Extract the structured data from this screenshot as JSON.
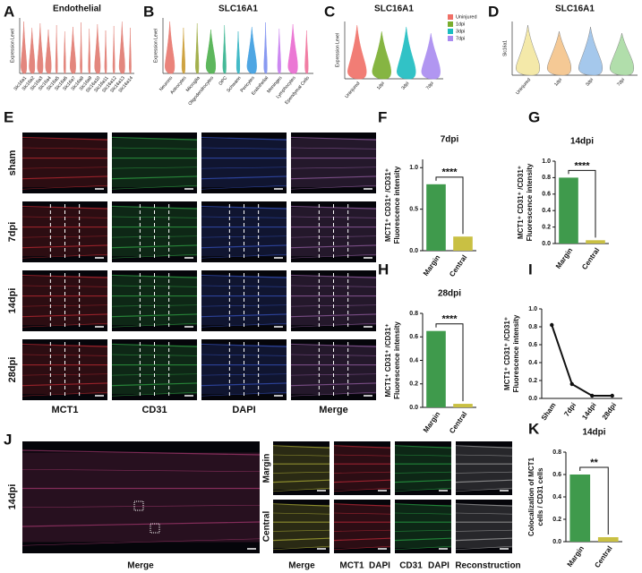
{
  "panel_letters": [
    "A",
    "B",
    "C",
    "D",
    "E",
    "F",
    "G",
    "H",
    "I",
    "J",
    "K"
  ],
  "violins": [
    {
      "title": "Endothelial",
      "ylabel": "Expression Level",
      "categories": [
        "Slc16a1",
        "Slc16a2",
        "Slc16a3",
        "Slc16a4",
        "Slc16a5",
        "Slc16a6",
        "Slc16a7",
        "Slc16a8",
        "Slc16a9",
        "Slc16a10",
        "Slc16a11",
        "Slc16a12",
        "Slc16a13",
        "Slc16a14"
      ],
      "colors": [
        "#e07a70"
      ]
    },
    {
      "title": "SLC16A1",
      "ylabel": "Expression Level",
      "categories": [
        "Neurons",
        "Astrocytes",
        "Microglia",
        "Oligodendrocytes",
        "OPC",
        "Schwann",
        "Pericytes",
        "Endothelial",
        "Meninges",
        "Lymphocytes",
        "Ependymal Cells"
      ],
      "colors": [
        "#e8766d",
        "#c99a2e",
        "#9aa83a",
        "#4cb04c",
        "#33b38d",
        "#2fb3c2",
        "#3b9de0",
        "#7c8ff0",
        "#c77cf0",
        "#e96ad0",
        "#f0709a"
      ]
    },
    {
      "title": "SLC16A1",
      "ylabel": "Expression Level",
      "categories": [
        "Uninjured",
        "1dpi",
        "3dpi",
        "7dpi"
      ],
      "colors": [
        "#f07067",
        "#7aad2e",
        "#1bbcc0",
        "#a98bf0"
      ],
      "legend": [
        "Uninjured",
        "1dpi",
        "3dpi",
        "7dpi"
      ]
    },
    {
      "title": "SLC16A1",
      "ylabel": "Slc16a1",
      "categories": [
        "Uninjured",
        "1dpi",
        "3dpi",
        "7dpi"
      ],
      "colors": [
        "#f3e7a0",
        "#f5c48a",
        "#9cc3ea",
        "#a9dba2"
      ]
    }
  ],
  "image_panel_e": {
    "rows": [
      "sham",
      "7dpi",
      "14dpi",
      "28dpi"
    ],
    "columns": [
      "MCT1",
      "CD31",
      "DAPI",
      "Merge"
    ]
  },
  "image_panel_j": {
    "side_label": "14dpi",
    "main_label": "Merge",
    "rows": [
      "Margin",
      "Central"
    ],
    "col_merge": "Merge",
    "col2": [
      "MCT1",
      "DAPI"
    ],
    "col3": [
      "CD31",
      "DAPI"
    ],
    "col_reconstruction": "Reconstruction"
  },
  "chart_data": [
    {
      "type": "bar",
      "title": "7dpi",
      "ylabel": [
        "MCT1⁺ CD31⁺ /CD31⁺",
        "Fluorescence intensity"
      ],
      "categories": [
        "Margin",
        "Central"
      ],
      "values": [
        0.8,
        0.17
      ],
      "colors": [
        "#3f9a4c",
        "#c9c043"
      ],
      "ylim": [
        0,
        1.1
      ],
      "yticks": [
        {
          "value": 0,
          "label": "0.0"
        },
        {
          "value": 0.5,
          "label": "0.5"
        },
        {
          "value": 1,
          "label": "1.0"
        }
      ],
      "annotation": "****"
    },
    {
      "type": "bar",
      "title": "14dpi",
      "ylabel": [
        "MCT1⁺ CD31⁺ /CD31⁺",
        "Fluorescence intensity"
      ],
      "categories": [
        "Margin",
        "Central"
      ],
      "values": [
        0.8,
        0.04
      ],
      "colors": [
        "#3f9a4c",
        "#c9c043"
      ],
      "ylim": [
        0,
        1.0
      ],
      "yticks": [
        {
          "value": 0,
          "label": "0.0"
        },
        {
          "value": 0.2,
          "label": "0.2"
        },
        {
          "value": 0.4,
          "label": "0.4"
        },
        {
          "value": 0.6,
          "label": "0.6"
        },
        {
          "value": 0.8,
          "label": "0.8"
        },
        {
          "value": 1,
          "label": "1.0"
        }
      ],
      "annotation": "****"
    },
    {
      "type": "bar",
      "title": "28dpi",
      "ylabel": [
        "MCT1⁺ CD31⁺ /CD31⁺",
        "Fluorescence intensity"
      ],
      "categories": [
        "Margin",
        "Central"
      ],
      "values": [
        0.65,
        0.03
      ],
      "colors": [
        "#3f9a4c",
        "#c9c043"
      ],
      "ylim": [
        0,
        0.8
      ],
      "yticks": [
        {
          "value": 0,
          "label": "0.0"
        },
        {
          "value": 0.2,
          "label": "0.2"
        },
        {
          "value": 0.4,
          "label": "0.4"
        },
        {
          "value": 0.6,
          "label": "0.6"
        },
        {
          "value": 0.8,
          "label": "0.8"
        }
      ],
      "annotation": "****"
    },
    {
      "type": "line",
      "ylabel": [
        "MCT1⁺ CD31⁺ /CD31⁺",
        "Fluorescence intensity"
      ],
      "categories": [
        "Sham",
        "7dpi",
        "14dpi",
        "28dpi"
      ],
      "values": [
        0.82,
        0.16,
        0.03,
        0.03
      ],
      "color": "#111111",
      "ylim": [
        0,
        1.0
      ],
      "yticks": [
        {
          "value": 0,
          "label": "0.0"
        },
        {
          "value": 0.2,
          "label": "0.2"
        },
        {
          "value": 0.4,
          "label": "0.4"
        },
        {
          "value": 0.6,
          "label": "0.6"
        },
        {
          "value": 0.8,
          "label": "0.8"
        },
        {
          "value": 1,
          "label": "1.0"
        }
      ]
    },
    {
      "type": "bar",
      "title": "14dpi",
      "ylabel": [
        "Colocalization of MCT1",
        "cells / CD31 cells"
      ],
      "categories": [
        "Margin",
        "Central"
      ],
      "values": [
        0.6,
        0.04
      ],
      "colors": [
        "#3f9a4c",
        "#c9c043"
      ],
      "ylim": [
        0,
        0.8
      ],
      "yticks": [
        {
          "value": 0,
          "label": "0.0"
        },
        {
          "value": 0.2,
          "label": "0.2"
        },
        {
          "value": 0.4,
          "label": "0.4"
        },
        {
          "value": 0.6,
          "label": "0.6"
        },
        {
          "value": 0.8,
          "label": "0.8"
        }
      ],
      "annotation": "**"
    }
  ]
}
